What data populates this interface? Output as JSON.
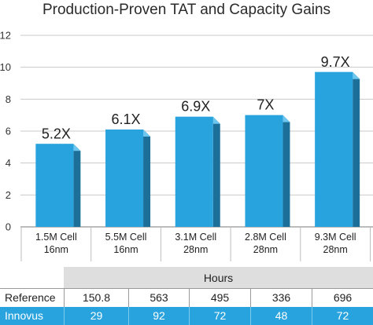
{
  "chart_data": {
    "type": "bar",
    "title": "Production-Proven TAT and Capacity Gains",
    "categories": [
      [
        "1.5M Cell",
        "16nm"
      ],
      [
        "5.5M Cell",
        "16nm"
      ],
      [
        "3.1M Cell",
        "28nm"
      ],
      [
        "2.8M Cell",
        "28nm"
      ],
      [
        "9.3M Cell",
        "28nm"
      ]
    ],
    "values": [
      5.2,
      6.1,
      6.9,
      7.0,
      9.7
    ],
    "data_labels": [
      "5.2X",
      "6.1X",
      "6.9X",
      "7X",
      "9.7X"
    ],
    "ylim": [
      0,
      12
    ],
    "yticks": [
      0,
      2,
      4,
      6,
      8,
      10,
      12
    ],
    "grid": true,
    "bar_color": "#29a3dd",
    "bar_side_color": "#1b6f99",
    "bar_top_color": "#6cc6ee"
  },
  "table": {
    "header": "Hours",
    "rows": [
      {
        "label": "Reference",
        "values": [
          "150.8",
          "563",
          "495",
          "336",
          "696"
        ]
      },
      {
        "label": "Innovus",
        "values": [
          "29",
          "92",
          "72",
          "48",
          "72"
        ]
      }
    ]
  }
}
